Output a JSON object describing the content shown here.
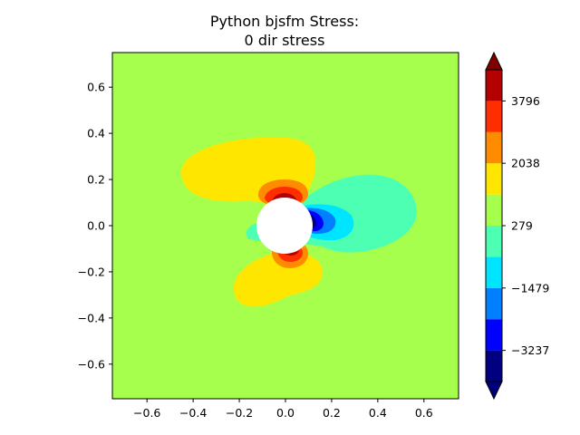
{
  "chart_data": {
    "type": "contourf",
    "title": "Python bjsfm Stress:",
    "subtitle": "0 dir stress",
    "xlabel": "",
    "ylabel": "",
    "xlim": [
      -0.75,
      0.75
    ],
    "ylim": [
      -0.75,
      0.75
    ],
    "grid": false,
    "xticks": [
      -0.6,
      -0.4,
      -0.2,
      0.0,
      0.2,
      0.4,
      0.6
    ],
    "yticks": [
      -0.6,
      -0.4,
      -0.2,
      0.0,
      0.2,
      0.4,
      0.6
    ],
    "xtick_labels": [
      "−0.6",
      "−0.4",
      "−0.2",
      "0.0",
      "0.2",
      "0.4",
      "0.6"
    ],
    "ytick_labels": [
      "−0.6",
      "−0.4",
      "−0.2",
      "0.0",
      "0.2",
      "0.4",
      "0.6"
    ],
    "hole": {
      "center": [
        0.0,
        0.0
      ],
      "radius": 0.12
    },
    "colorbar": {
      "levels": [
        -4116,
        -3237,
        -2358,
        -1479,
        -600,
        279,
        1158,
        2038,
        2917,
        3796,
        4675
      ],
      "tick_labels": [
        "3796",
        "2038",
        "279",
        "−1479",
        "−3237"
      ],
      "tick_values": [
        3796,
        2038,
        279,
        -1479,
        -3237
      ],
      "colors": [
        "#000080",
        "#0000ff",
        "#0080ff",
        "#00e5ff",
        "#4dffb3",
        "#a6ff4d",
        "#ffe600",
        "#ff8c00",
        "#ff2e00",
        "#b30000"
      ],
      "extend": "both",
      "under_color": "#00007a",
      "over_color": "#800000"
    },
    "background_level_color": "#a6ff4d",
    "regions": [
      {
        "level": "yellow",
        "color": "#ffe600",
        "location": "upper-left lobe"
      },
      {
        "level": "yellow",
        "color": "#ffe600",
        "location": "lower lobe"
      },
      {
        "level": "green",
        "color": "#4dffb3",
        "location": "right lobe"
      },
      {
        "level": "cyan",
        "color": "#00e5ff",
        "location": "right of hole"
      },
      {
        "level": "blue",
        "color": "#0080ff",
        "location": "right of hole"
      },
      {
        "level": "dark-blue",
        "color": "#0000ff",
        "location": "right of hole edge"
      },
      {
        "level": "orange",
        "color": "#ff8c00",
        "location": "above and below hole"
      },
      {
        "level": "red",
        "color": "#ff2e00",
        "location": "above and below hole edge"
      },
      {
        "level": "dark-red",
        "color": "#b30000",
        "location": "hole edge top/bottom"
      }
    ]
  }
}
